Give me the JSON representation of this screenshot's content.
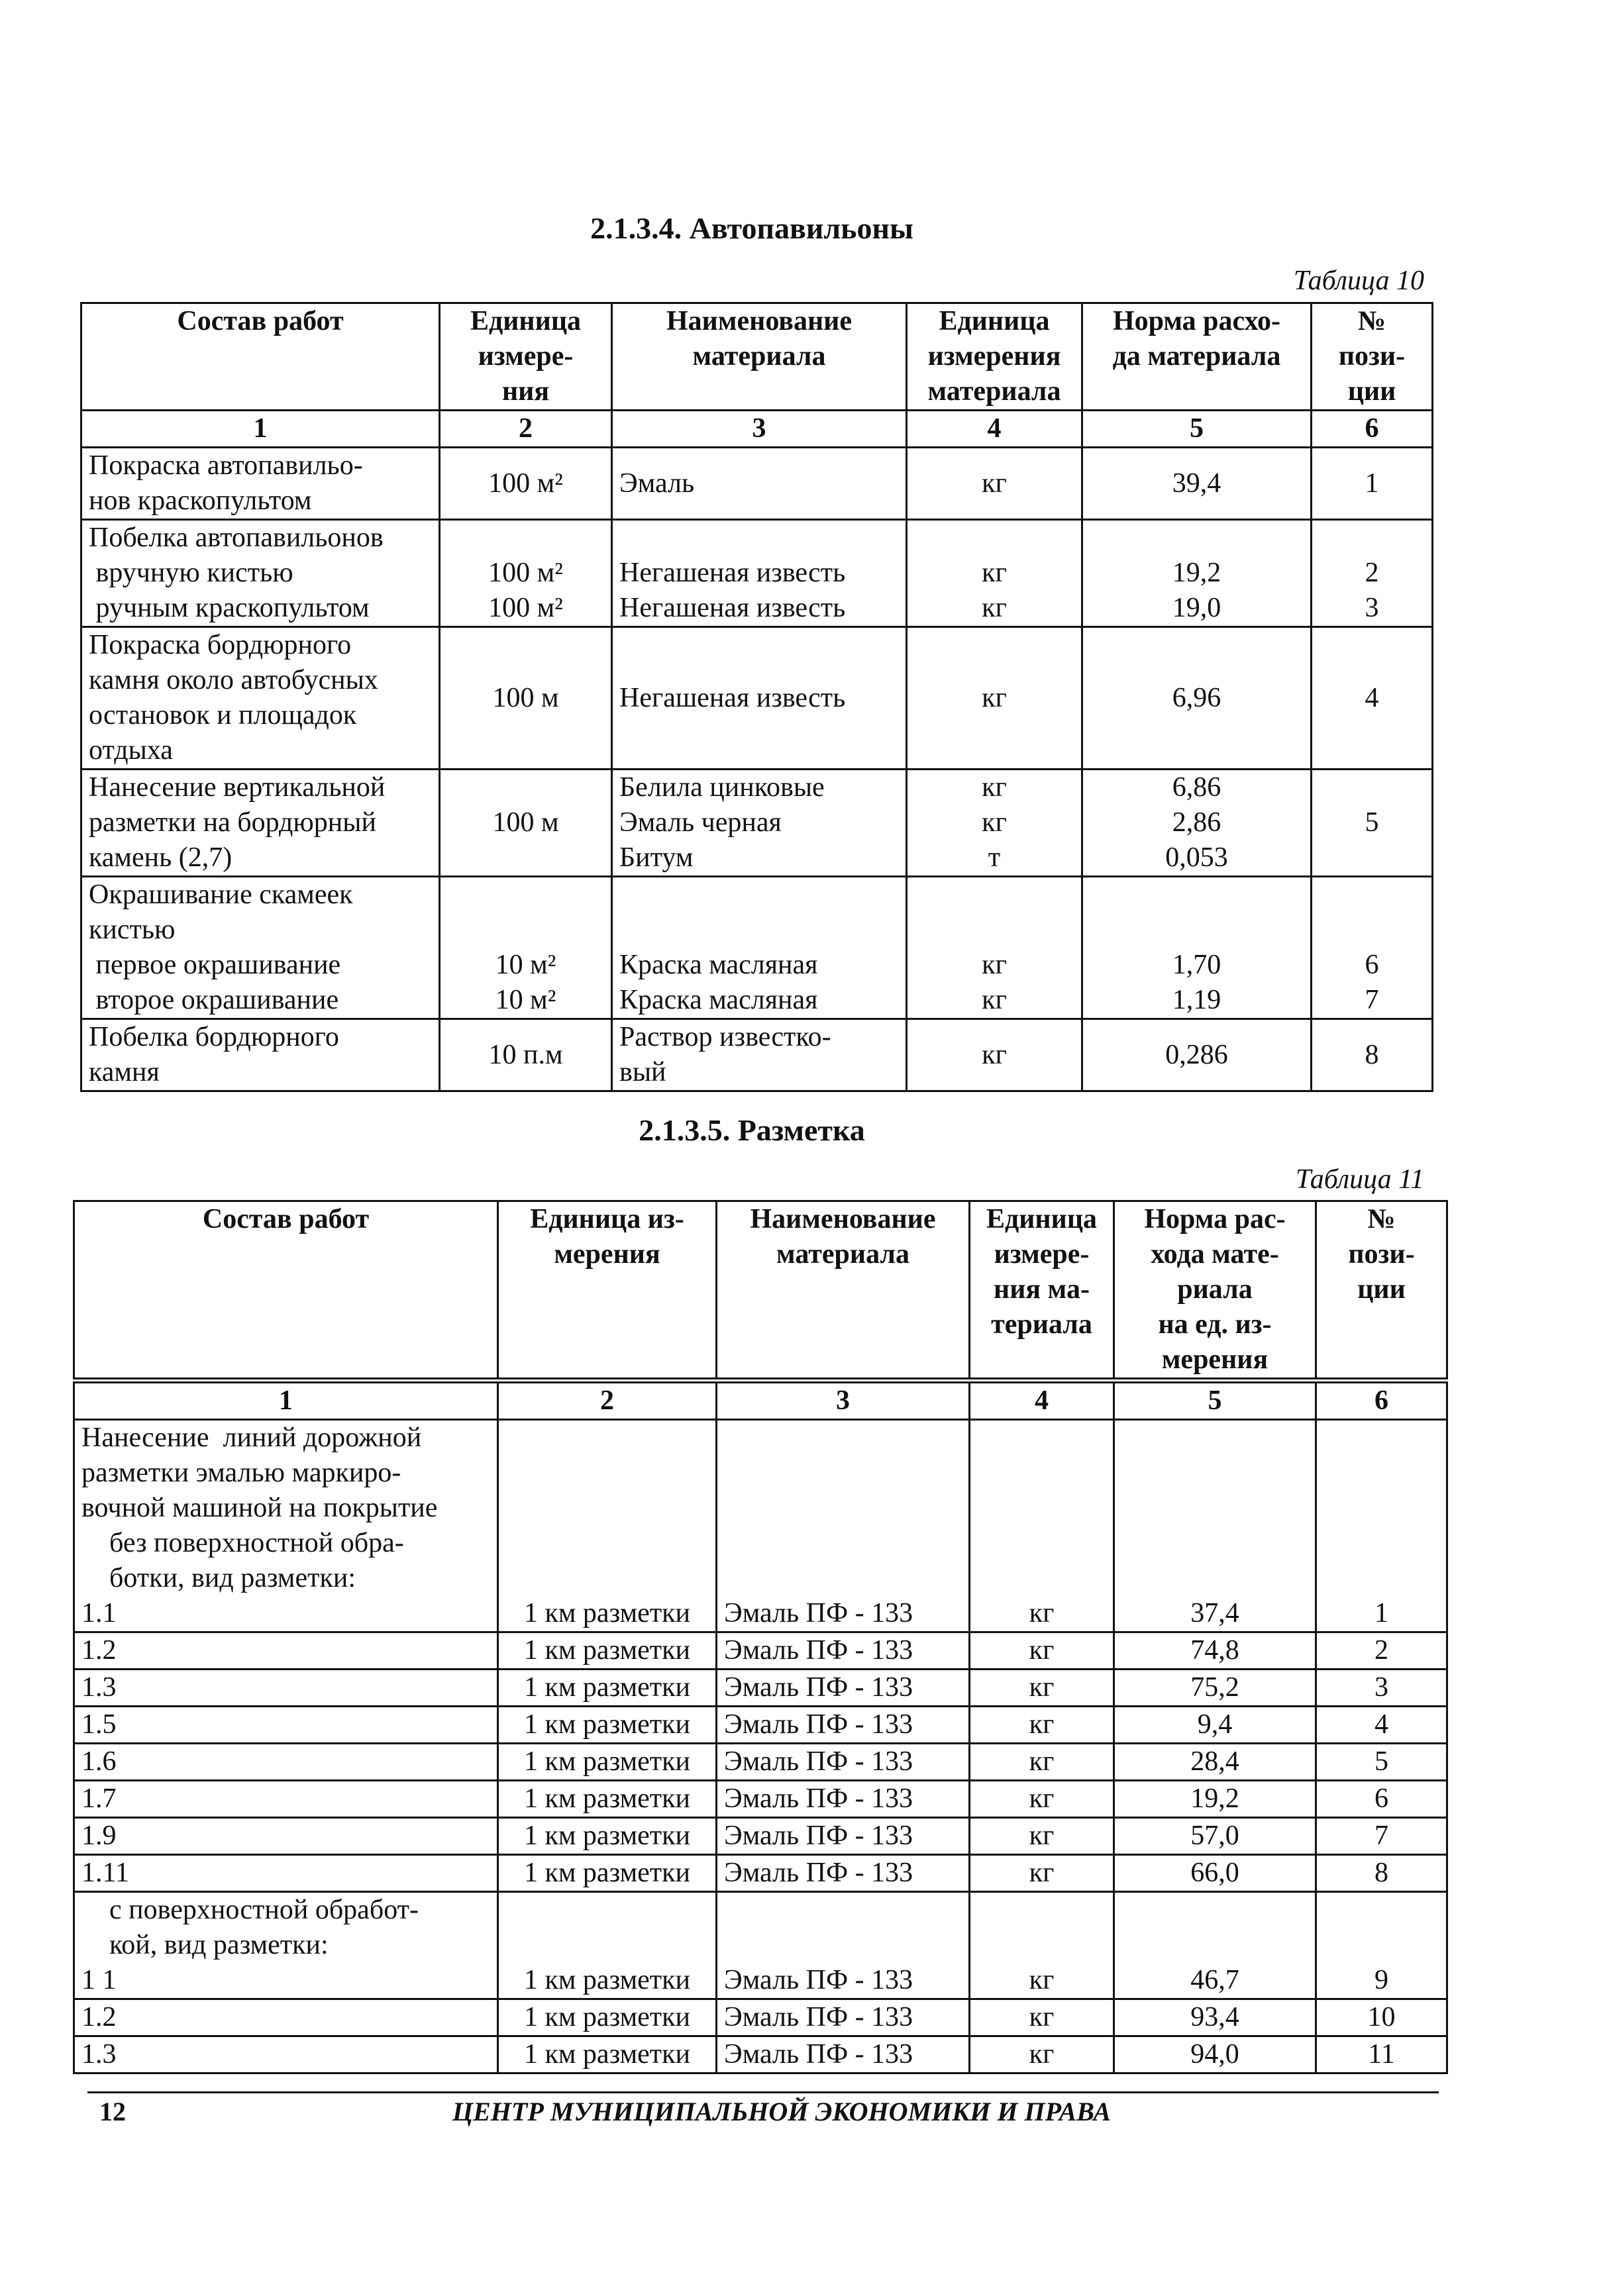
{
  "section1": {
    "title": "2.1.3.4. Автопавильоны",
    "caption": "Таблица 10",
    "headers": [
      "Состав работ",
      "Единица\nизмере-\nния",
      "Наименование\nматериала",
      "Единица\nизмерения\nматериала",
      "Норма расхо-\nда материала",
      "№\nпози-\nции"
    ],
    "numbers": [
      "1",
      "2",
      "3",
      "4",
      "5",
      "6"
    ],
    "rows": [
      [
        "Покраска автопавильо-\nнов краскопультом",
        "100 м²",
        "Эмаль",
        "кг",
        "39,4",
        "1"
      ],
      [
        "Побелка автопавильонов\n вручную кистью\n ручным краскопультом",
        "\n100 м²\n100 м²",
        "\nНегашеная известь\nНегашеная известь",
        "\nкг\nкг",
        "\n19,2\n19,0",
        "\n2\n3"
      ],
      [
        "Покраска бордюрного\nкамня около автобусных\nостановок и площадок\nотдыха",
        "100 м",
        "Негашеная известь",
        "кг",
        "6,96",
        "4"
      ],
      [
        "Нанесение вертикальной\nразметки на бордюрный\nкамень (2,7)",
        "100 м",
        "Белила цинковые\nЭмаль черная\nБитум",
        "кг\nкг\nт",
        "6,86\n2,86\n0,053",
        "5"
      ],
      [
        "Окрашивание скамеек\nкистью\n первое окрашивание\n второе окрашивание",
        "\n\n10 м²\n10 м²",
        "\n\nКраска масляная\nКраска масляная",
        "\n\nкг\nкг",
        "\n\n1,70\n1,19",
        "\n\n6\n7"
      ],
      [
        "Побелка бордюрного\nкамня",
        "10 п.м",
        "Раствор известко-\nвый",
        "кг",
        "0,286",
        "8"
      ]
    ]
  },
  "section2": {
    "title": "2.1.3.5. Разметка",
    "caption": "Таблица 11",
    "headers": [
      "Состав работ",
      "Единица из-\nмерения",
      "Наименование\nматериала",
      "Единица\nизмере-\nния ма-\nтериала",
      "Норма рас-\nхода мате-\nриала\nна ед. из-\nмерения",
      "№\nпози-\nции"
    ],
    "numbers": [
      "1",
      "2",
      "3",
      "4",
      "5",
      "6"
    ],
    "rows": [
      [
        "Нанесение  линий дорожной\nразметки эмалью маркиро-\nвочной машиной на покрытие\n    без поверхностной обра-\n    ботки, вид разметки:\n1.1",
        "\n\n\n\n\n1 км разметки",
        "\n\n\n\n\nЭмаль ПФ - 133",
        "\n\n\n\n\nкг",
        "\n\n\n\n\n37,4",
        "\n\n\n\n\n1"
      ],
      [
        "1.2",
        "1 км разметки",
        "Эмаль ПФ - 133",
        "кг",
        "74,8",
        "2"
      ],
      [
        "1.3",
        "1 км разметки",
        "Эмаль ПФ - 133",
        "кг",
        "75,2",
        "3"
      ],
      [
        "1.5",
        "1 км разметки",
        "Эмаль ПФ - 133",
        "кг",
        "9,4",
        "4"
      ],
      [
        "1.6",
        "1 км разметки",
        "Эмаль ПФ - 133",
        "кг",
        "28,4",
        "5"
      ],
      [
        "1.7",
        "1 км разметки",
        "Эмаль ПФ - 133",
        "кг",
        "19,2",
        "6"
      ],
      [
        "1.9",
        "1 км разметки",
        "Эмаль ПФ - 133",
        "кг",
        "57,0",
        "7"
      ],
      [
        "1.11",
        "1 км разметки",
        "Эмаль ПФ - 133",
        "кг",
        "66,0",
        "8"
      ],
      [
        "    с поверхностной обработ-\n    кой, вид разметки:\n1 1",
        "\n\n1 км разметки",
        "\n\nЭмаль ПФ - 133",
        "\n\nкг",
        "\n\n46,7",
        "\n\n9"
      ],
      [
        "1.2",
        "1 км разметки",
        "Эмаль ПФ - 133",
        "кг",
        "93,4",
        "10"
      ],
      [
        "1.3",
        "1 км разметки",
        "Эмаль ПФ - 133",
        "кг",
        "94,0",
        "11"
      ]
    ]
  },
  "footer": {
    "page_number": "12",
    "publisher": "ЦЕНТР МУНИЦИПАЛЬНОЙ ЭКОНОМИКИ И ПРАВА"
  }
}
